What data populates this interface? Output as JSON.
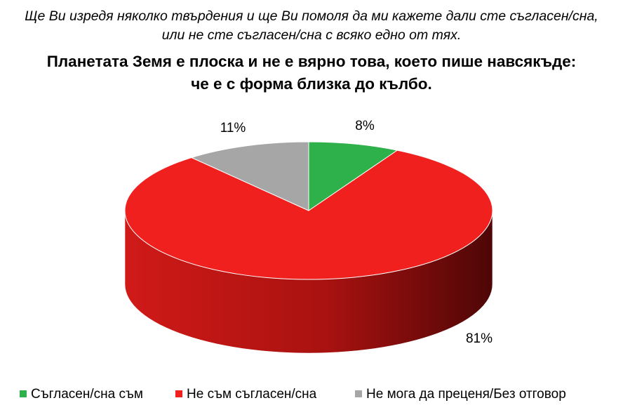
{
  "chart_data": {
    "type": "pie3d",
    "subtitle": "Ще Ви изредя няколко твърдения и ще Ви помоля да ми кажете дали сте съгласен/сна, или не сте съгласен/сна с всяко едно от тях.",
    "title": "Планетата Земя е плоска и не е вярно това, което пише навсякъде: че е с форма близка до кълбо.",
    "categories": [
      "Съгласен/сна съм",
      "Не съм съгласен/сна",
      "Не мога да преценя/Без отговор"
    ],
    "values": [
      8,
      81,
      11
    ],
    "value_labels": [
      "8%",
      "81%",
      "11%"
    ],
    "colors": [
      "#2eb04b",
      "#f0201e",
      "#a6a6a6"
    ],
    "legend": "bottom"
  }
}
